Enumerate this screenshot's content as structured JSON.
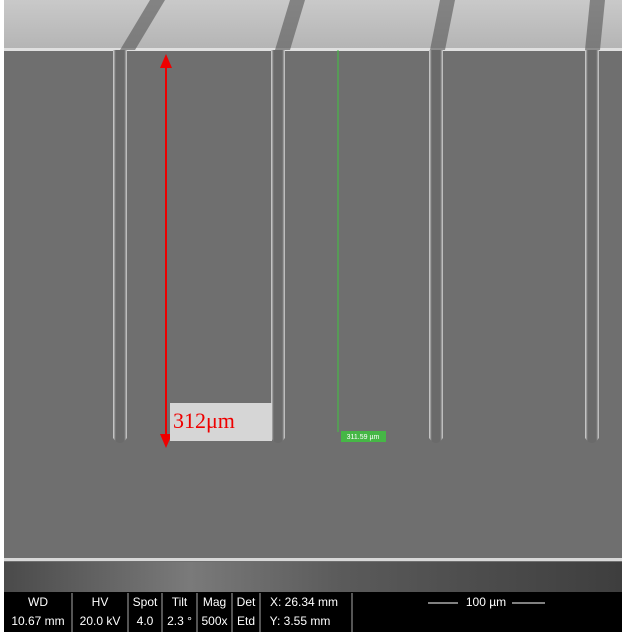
{
  "annotation": {
    "depth_label": "312μm",
    "measure_label": "311.59 µm"
  },
  "databar": {
    "columns": [
      {
        "header": "WD",
        "value": "10.67 mm"
      },
      {
        "header": "HV",
        "value": "20.0 kV"
      },
      {
        "header": "Spot",
        "value": "4.0"
      },
      {
        "header": "Tilt",
        "value": "2.3 °"
      },
      {
        "header": "Mag",
        "value": "500x"
      },
      {
        "header": "Det",
        "value": "Etd"
      }
    ],
    "x": "X: 26.34 mm",
    "y": "Y: 3.55 mm",
    "scale": "100 µm"
  }
}
